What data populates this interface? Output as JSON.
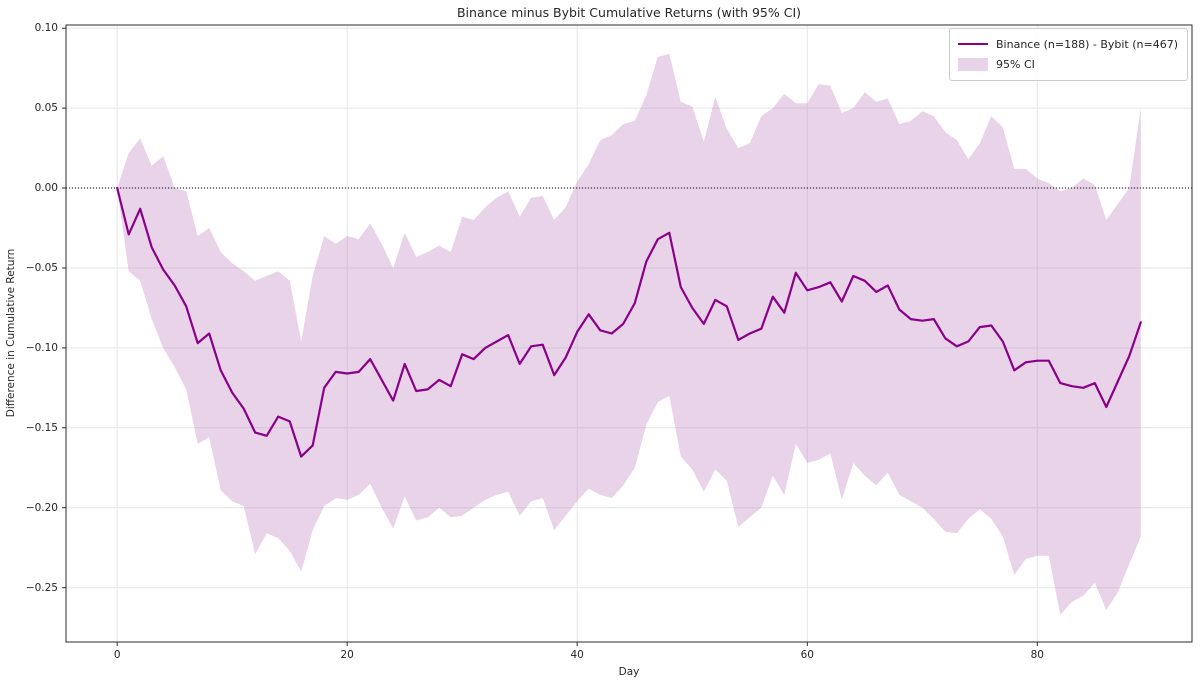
{
  "figure": {
    "title": "Binance minus Bybit Cumulative Returns (with 95% CI)",
    "xlabel": "Day",
    "ylabel": "Difference in Cumulative Return"
  },
  "legend": {
    "series_label": "Binance (n=188) - Bybit (n=467)",
    "ci_label": "95% CI"
  },
  "colors": {
    "line": "#8a0189",
    "band": "rgba(189,129,189,0.35)",
    "grid": "#e6e6e6",
    "spine": "#2b2b2b",
    "zero_line": "#000000",
    "text": "#262626",
    "legend_border": "#cccccc"
  },
  "chart_data": {
    "type": "line",
    "title": "Binance minus Bybit Cumulative Returns (with 95% CI)",
    "xlabel": "Day",
    "ylabel": "Difference in Cumulative Return",
    "grid": true,
    "legend_position": "upper right",
    "zero_line": 0.0,
    "xlim": [
      -4.45,
      93.45
    ],
    "ylim": [
      -0.284,
      0.102
    ],
    "xticks": [
      0,
      20,
      40,
      60,
      80
    ],
    "yticks": [
      0.1,
      0.05,
      0.0,
      -0.05,
      -0.1,
      -0.15,
      -0.2,
      -0.25
    ],
    "days": [
      0,
      1,
      2,
      3,
      4,
      5,
      6,
      7,
      8,
      9,
      10,
      11,
      12,
      13,
      14,
      15,
      16,
      17,
      18,
      19,
      20,
      21,
      22,
      23,
      24,
      25,
      26,
      27,
      28,
      29,
      30,
      31,
      32,
      33,
      34,
      35,
      36,
      37,
      38,
      39,
      40,
      41,
      42,
      43,
      44,
      45,
      46,
      47,
      48,
      49,
      50,
      51,
      52,
      53,
      54,
      55,
      56,
      57,
      58,
      59,
      60,
      61,
      62,
      63,
      64,
      65,
      66,
      67,
      68,
      69,
      70,
      71,
      72,
      73,
      74,
      75,
      76,
      77,
      78,
      79,
      80,
      81,
      82,
      83,
      84,
      85,
      86,
      87,
      88,
      89
    ],
    "series": [
      {
        "name": "Binance (n=188) - Bybit (n=467)",
        "values": [
          0.0,
          -0.029,
          -0.013,
          -0.037,
          -0.051,
          -0.061,
          -0.074,
          -0.097,
          -0.091,
          -0.114,
          -0.128,
          -0.138,
          -0.153,
          -0.155,
          -0.143,
          -0.146,
          -0.168,
          -0.161,
          -0.125,
          -0.115,
          -0.116,
          -0.115,
          -0.107,
          -0.12,
          -0.133,
          -0.11,
          -0.127,
          -0.126,
          -0.12,
          -0.124,
          -0.104,
          -0.107,
          -0.1,
          -0.096,
          -0.092,
          -0.11,
          -0.099,
          -0.098,
          -0.117,
          -0.106,
          -0.09,
          -0.079,
          -0.089,
          -0.091,
          -0.085,
          -0.072,
          -0.046,
          -0.032,
          -0.028,
          -0.062,
          -0.075,
          -0.085,
          -0.07,
          -0.074,
          -0.095,
          -0.091,
          -0.088,
          -0.068,
          -0.078,
          -0.053,
          -0.064,
          -0.062,
          -0.059,
          -0.071,
          -0.055,
          -0.058,
          -0.065,
          -0.061,
          -0.076,
          -0.082,
          -0.083,
          -0.082,
          -0.094,
          -0.099,
          -0.096,
          -0.087,
          -0.086,
          -0.096,
          -0.114,
          -0.109,
          -0.108,
          -0.108,
          -0.122,
          -0.124,
          -0.125,
          -0.122,
          -0.137,
          -0.121,
          -0.105,
          -0.084
        ]
      }
    ],
    "ci_upper": [
      0.0,
      0.022,
      0.031,
      0.014,
      0.02,
      0.0,
      -0.002,
      -0.03,
      -0.025,
      -0.04,
      -0.047,
      -0.052,
      -0.058,
      -0.055,
      -0.052,
      -0.058,
      -0.096,
      -0.055,
      -0.03,
      -0.035,
      -0.03,
      -0.032,
      -0.022,
      -0.035,
      -0.05,
      -0.028,
      -0.043,
      -0.04,
      -0.036,
      -0.04,
      -0.018,
      -0.02,
      -0.012,
      -0.006,
      -0.002,
      -0.018,
      -0.006,
      -0.005,
      -0.02,
      -0.012,
      0.004,
      0.015,
      0.03,
      0.033,
      0.04,
      0.042,
      0.058,
      0.082,
      0.084,
      0.054,
      0.051,
      0.029,
      0.057,
      0.037,
      0.025,
      0.028,
      0.045,
      0.05,
      0.059,
      0.053,
      0.053,
      0.065,
      0.064,
      0.047,
      0.05,
      0.06,
      0.054,
      0.056,
      0.04,
      0.042,
      0.048,
      0.045,
      0.035,
      0.03,
      0.018,
      0.028,
      0.045,
      0.038,
      0.012,
      0.012,
      0.006,
      0.003,
      -0.002,
      0.0,
      0.006,
      0.002,
      -0.02,
      -0.01,
      0.0,
      0.05
    ],
    "ci_lower": [
      0.0,
      -0.052,
      -0.058,
      -0.082,
      -0.1,
      -0.112,
      -0.126,
      -0.16,
      -0.156,
      -0.189,
      -0.196,
      -0.199,
      -0.229,
      -0.216,
      -0.219,
      -0.227,
      -0.24,
      -0.214,
      -0.199,
      -0.194,
      -0.195,
      -0.192,
      -0.185,
      -0.2,
      -0.213,
      -0.193,
      -0.208,
      -0.206,
      -0.2,
      -0.206,
      -0.205,
      -0.2,
      -0.195,
      -0.192,
      -0.19,
      -0.205,
      -0.196,
      -0.194,
      -0.214,
      -0.205,
      -0.196,
      -0.188,
      -0.192,
      -0.194,
      -0.186,
      -0.175,
      -0.148,
      -0.134,
      -0.13,
      -0.168,
      -0.176,
      -0.19,
      -0.176,
      -0.183,
      -0.212,
      -0.206,
      -0.2,
      -0.18,
      -0.192,
      -0.16,
      -0.172,
      -0.17,
      -0.166,
      -0.195,
      -0.172,
      -0.18,
      -0.186,
      -0.178,
      -0.192,
      -0.196,
      -0.2,
      -0.207,
      -0.215,
      -0.216,
      -0.207,
      -0.201,
      -0.207,
      -0.218,
      -0.242,
      -0.232,
      -0.23,
      -0.23,
      -0.267,
      -0.259,
      -0.255,
      -0.247,
      -0.264,
      -0.253,
      -0.235,
      -0.218
    ]
  }
}
